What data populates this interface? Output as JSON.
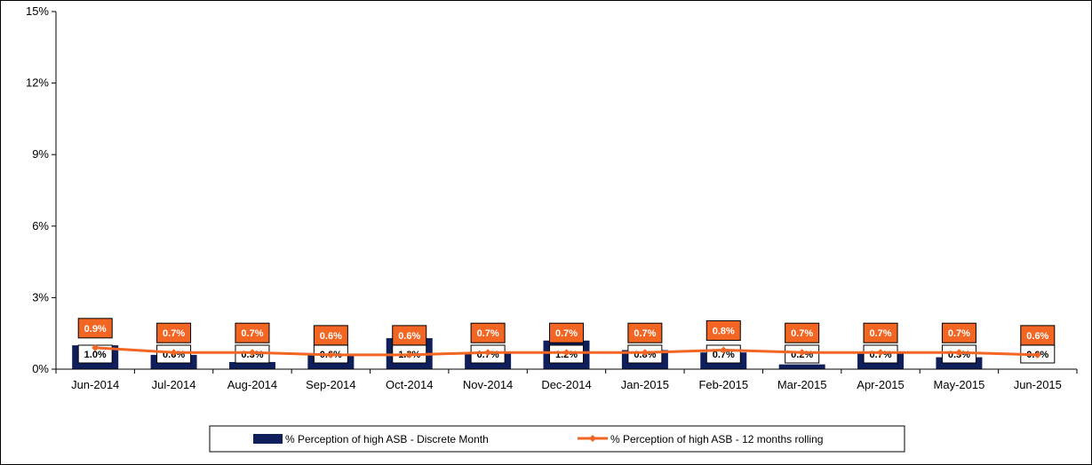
{
  "chart_data": {
    "type": "bar+line",
    "title": "",
    "xlabel": "",
    "ylabel": "",
    "ylim": [
      0,
      15
    ],
    "yticks": [
      "0%",
      "3%",
      "6%",
      "9%",
      "12%",
      "15%"
    ],
    "categories": [
      "Jun-2014",
      "Jul-2014",
      "Aug-2014",
      "Sep-2014",
      "Oct-2014",
      "Nov-2014",
      "Dec-2014",
      "Jan-2015",
      "Feb-2015",
      "Mar-2015",
      "Apr-2015",
      "May-2015",
      "Jun-2015"
    ],
    "series": [
      {
        "name": "% Perception of high ASB - Discrete Month",
        "kind": "bar",
        "color": "#0f1f5c",
        "values": [
          1.0,
          0.6,
          0.3,
          0.6,
          1.3,
          0.7,
          1.2,
          0.8,
          0.7,
          0.2,
          0.7,
          0.5,
          0.0
        ],
        "labels": [
          "1.0%",
          "0.6%",
          "0.3%",
          "0.6%",
          "1.3%",
          "0.7%",
          "1.2%",
          "0.8%",
          "0.7%",
          "0.2%",
          "0.7%",
          "0.5%",
          "0.0%"
        ]
      },
      {
        "name": "% Perception of high ASB - 12 months rolling",
        "kind": "line",
        "color": "#f26522",
        "values": [
          0.9,
          0.7,
          0.7,
          0.6,
          0.6,
          0.7,
          0.7,
          0.7,
          0.8,
          0.7,
          0.7,
          0.7,
          0.6
        ],
        "labels": [
          "0.9%",
          "0.7%",
          "0.7%",
          "0.6%",
          "0.6%",
          "0.7%",
          "0.7%",
          "0.7%",
          "0.8%",
          "0.7%",
          "0.7%",
          "0.7%",
          "0.6%"
        ]
      }
    ],
    "grid": false,
    "legend": "bottom-center"
  }
}
